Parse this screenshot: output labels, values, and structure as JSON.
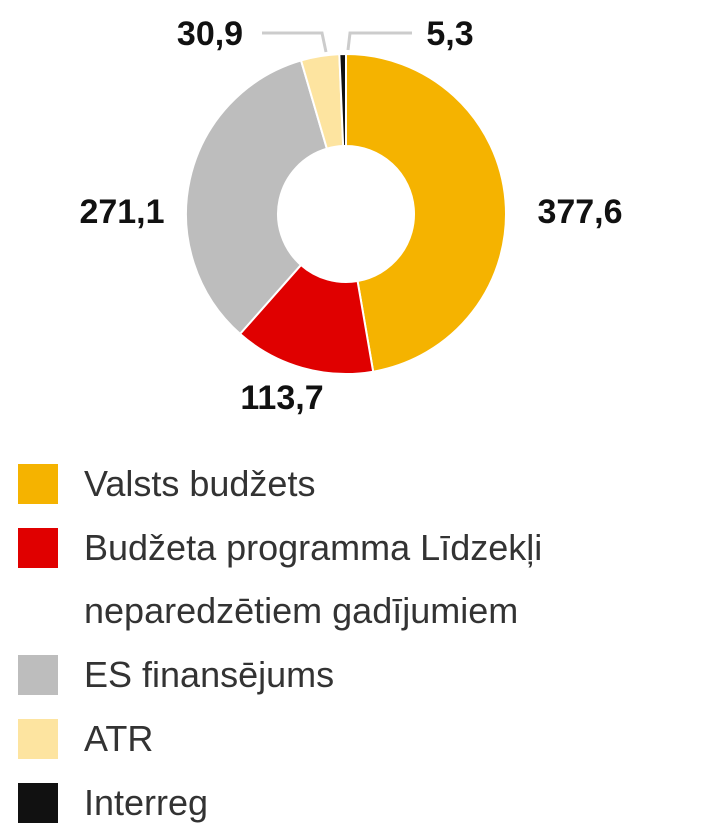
{
  "chart_data": {
    "type": "pie",
    "categories": [
      "Valsts budžets",
      "Budžeta programma Līdzekļi neparedzētiem gadījumiem",
      "ES finansējums",
      "ATR",
      "Interreg"
    ],
    "values": [
      377.6,
      113.7,
      271.1,
      30.9,
      5.3
    ],
    "value_labels": [
      "377,6",
      "113,7",
      "271,1",
      "30,9",
      "5,3"
    ],
    "colors": [
      "#f5b300",
      "#e00000",
      "#bdbdbd",
      "#fde4a0",
      "#111111"
    ],
    "legend": "bottom"
  }
}
